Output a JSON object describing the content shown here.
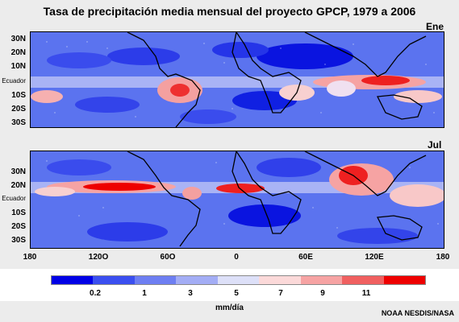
{
  "title": "Tasa de precipitación media mensual del proyecto GPCP, 1979 a 2006",
  "panels": [
    {
      "label": "Ene"
    },
    {
      "label": "Jul"
    }
  ],
  "lat_labels": [
    "30N",
    "20N",
    "10N",
    "Ecuador",
    "10S",
    "20S",
    "30S"
  ],
  "lon_labels": [
    "180",
    "120O",
    "60O",
    "0",
    "60E",
    "120E",
    "180"
  ],
  "legend": {
    "colors": [
      "#0000e6",
      "#3b4ff0",
      "#6e7ff2",
      "#a3adf5",
      "#dde0f8",
      "#fbd9d9",
      "#f6a3a3",
      "#f06060",
      "#ee0000"
    ],
    "ticks": [
      "0.2",
      "1",
      "3",
      "5",
      "7",
      "9",
      "11"
    ],
    "units": "mm/día"
  },
  "credit": "NOAA NESDIS/NASA"
}
